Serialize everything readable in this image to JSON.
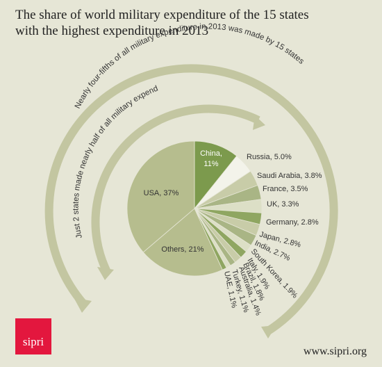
{
  "title": "The share of world military expenditure of the 15 states with the highest expenditure in 2013",
  "logo_text": "sipri",
  "url_text": "www.sipri.org",
  "annotations": {
    "outer_arc": "Nearly four-fifths of all military expenditure in 2013 was made by 15 states",
    "inner_arc": "Just 2 states made nearly half of all military expenditure"
  },
  "colors": {
    "background": "#e6e6d6",
    "arrow": "#c3c6a1",
    "dark_green": "#7c9a4d",
    "light_green": "#b6bd8e",
    "pale": "#f3f3ea"
  },
  "chart_data": {
    "type": "pie",
    "unit": "%",
    "slices": [
      {
        "name": "China",
        "value": 11,
        "label": "China,",
        "label2": "11%"
      },
      {
        "name": "Russia",
        "value": 5.0,
        "label": "Russia, 5.0%"
      },
      {
        "name": "Saudi Arabia",
        "value": 3.8,
        "label": "Saudi Arabia, 3.8%"
      },
      {
        "name": "France",
        "value": 3.5,
        "label": "France, 3.5%"
      },
      {
        "name": "UK",
        "value": 3.3,
        "label": "UK, 3.3%"
      },
      {
        "name": "Germany",
        "value": 2.8,
        "label": "Germany, 2.8%"
      },
      {
        "name": "Japan",
        "value": 2.8,
        "label": "Japan, 2.8%"
      },
      {
        "name": "India",
        "value": 2.7,
        "label": "India, 2.7%"
      },
      {
        "name": "South Korea",
        "value": 1.9,
        "label": "South Korea, 1.9%"
      },
      {
        "name": "Italy",
        "value": 1.9,
        "label": "Italy, 1.9%"
      },
      {
        "name": "Brazil",
        "value": 1.8,
        "label": "Brazil, 1.8%"
      },
      {
        "name": "Australia",
        "value": 1.4,
        "label": "Australia, 1.4%"
      },
      {
        "name": "Turkey",
        "value": 1.1,
        "label": "Turkey, 1.1%"
      },
      {
        "name": "UAE",
        "value": 1.1,
        "label": "UAE, 1.1%"
      },
      {
        "name": "Others",
        "value": 21,
        "label": "Others, 21%"
      },
      {
        "name": "USA",
        "value": 37,
        "label": "USA, 37%"
      }
    ]
  }
}
